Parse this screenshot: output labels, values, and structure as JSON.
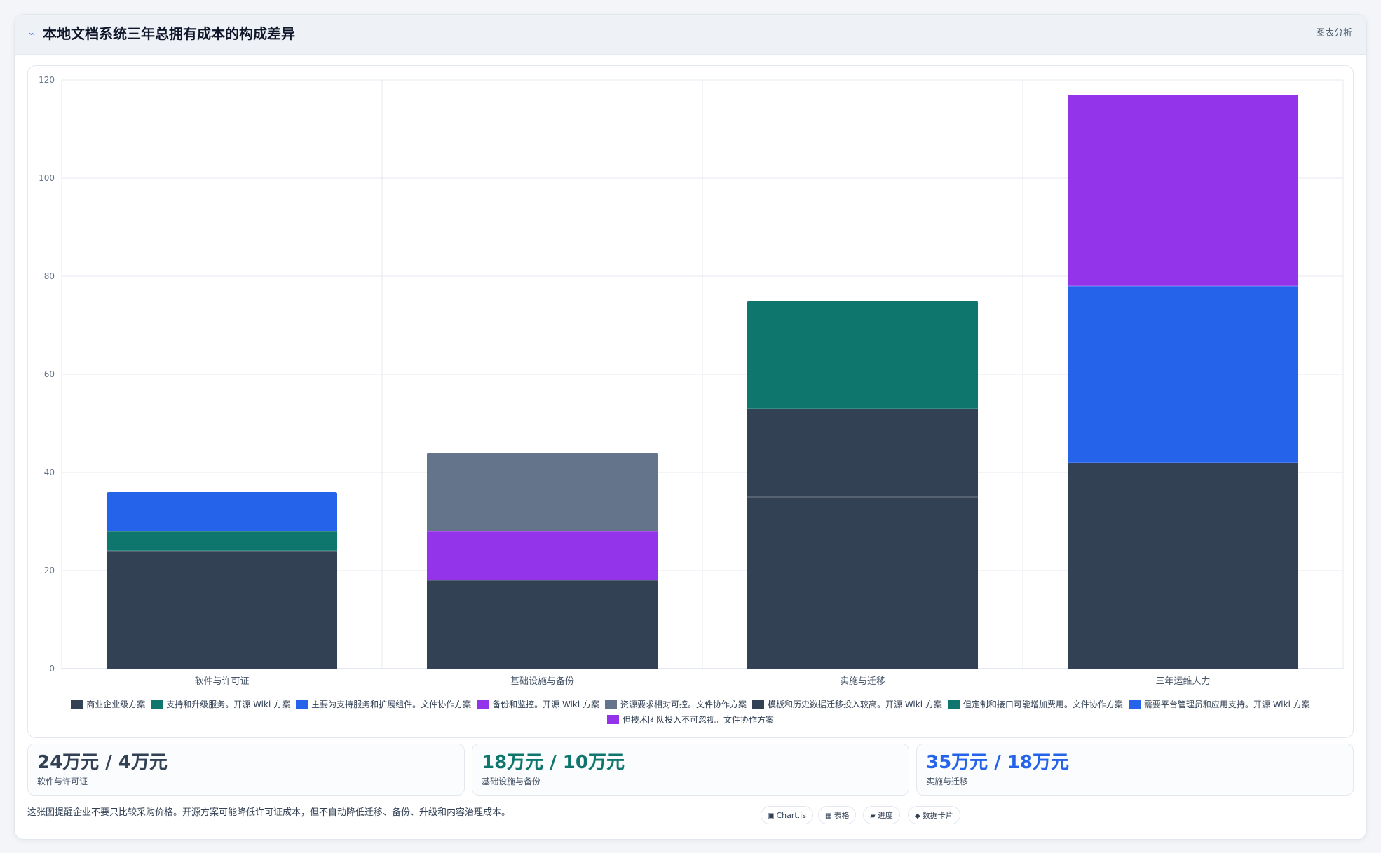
{
  "header": {
    "icon": "chart-icon",
    "title": "本地文档系统三年总拥有成本的构成差异",
    "tag": "图表分析"
  },
  "chart_data": {
    "type": "bar",
    "stacked": true,
    "categories": [
      "软件与许可证",
      "基础设施与备份",
      "实施与迁移",
      "三年运维人力"
    ],
    "ylim": [
      0,
      120
    ],
    "yticks": [
      0,
      20,
      40,
      60,
      80,
      100,
      120
    ],
    "grid": true,
    "legend_position": "bottom",
    "series": [
      {
        "name": "商业企业级方案",
        "color": "#334155",
        "values": [
          24,
          18,
          35,
          42
        ]
      },
      {
        "name": "支持和升级服务。开源 Wiki 方案",
        "color": "#0f766e",
        "values": [
          4,
          0,
          0,
          0
        ]
      },
      {
        "name": "主要为支持服务和扩展组件。文件协作方案",
        "color": "#2563eb",
        "values": [
          8,
          0,
          0,
          0
        ]
      },
      {
        "name": "备份和监控。开源 Wiki 方案",
        "color": "#9333ea",
        "values": [
          0,
          10,
          0,
          0
        ]
      },
      {
        "name": "资源要求相对可控。文件协作方案",
        "color": "#64748b",
        "values": [
          0,
          16,
          0,
          0
        ]
      },
      {
        "name": "模板和历史数据迁移投入较高。开源 Wiki 方案",
        "color": "#334155",
        "values": [
          0,
          0,
          18,
          0
        ]
      },
      {
        "name": "但定制和接口可能增加费用。文件协作方案",
        "color": "#0f766e",
        "values": [
          0,
          0,
          22,
          0
        ]
      },
      {
        "name": "需要平台管理员和应用支持。开源 Wiki 方案",
        "color": "#2563eb",
        "values": [
          0,
          0,
          0,
          36
        ]
      },
      {
        "name": "但技术团队投入不可忽视。文件协作方案",
        "color": "#9333ea",
        "values": [
          0,
          0,
          0,
          39
        ]
      }
    ]
  },
  "stats": [
    {
      "value": "24万元 / 4万元",
      "label": "软件与许可证",
      "color": "#334155"
    },
    {
      "value": "18万元 / 10万元",
      "label": "基础设施与备份",
      "color": "#0f766e"
    },
    {
      "value": "35万元 / 18万元",
      "label": "实施与迁移",
      "color": "#2563eb"
    }
  ],
  "footer": {
    "note": "这张图提醒企业不要只比较采购价格。开源方案可能降低许可证成本，但不自动降低迁移、备份、升级和内容治理成本。",
    "chips": [
      {
        "icon": "▣",
        "icon_name": "chart-icon",
        "label": "Chart.js"
      },
      {
        "icon": "▦",
        "icon_name": "table-icon",
        "label": "表格"
      },
      {
        "icon": "▰",
        "icon_name": "progress-icon",
        "label": "进度"
      },
      {
        "icon": "◆",
        "icon_name": "card-icon",
        "label": "数据卡片"
      }
    ]
  }
}
